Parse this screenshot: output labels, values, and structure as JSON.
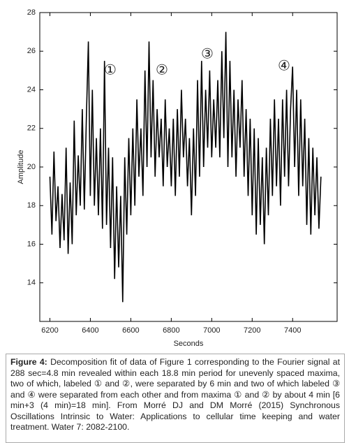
{
  "chart_data": {
    "type": "line",
    "xlabel": "Seconds",
    "ylabel": "Amplitude",
    "annotations": [
      "①",
      "②",
      "③",
      "④"
    ],
    "color": "#000000",
    "xlim": [
      6150,
      7620
    ],
    "xticks": [
      6200,
      6400,
      6600,
      6800,
      7000,
      7200,
      7400
    ],
    "ylim": [
      12,
      28
    ],
    "yticks": [
      14,
      16,
      18,
      20,
      22,
      24,
      26,
      28
    ],
    "x": [
      6200,
      6210,
      6220,
      6230,
      6240,
      6250,
      6260,
      6270,
      6280,
      6290,
      6300,
      6310,
      6320,
      6330,
      6340,
      6350,
      6360,
      6370,
      6380,
      6390,
      6400,
      6410,
      6420,
      6430,
      6440,
      6450,
      6460,
      6470,
      6480,
      6490,
      6500,
      6510,
      6520,
      6530,
      6540,
      6550,
      6560,
      6570,
      6580,
      6590,
      6600,
      6610,
      6620,
      6630,
      6640,
      6650,
      6660,
      6670,
      6680,
      6690,
      6700,
      6710,
      6720,
      6730,
      6740,
      6750,
      6760,
      6770,
      6780,
      6790,
      6800,
      6810,
      6820,
      6830,
      6840,
      6850,
      6860,
      6870,
      6880,
      6890,
      6900,
      6910,
      6920,
      6930,
      6940,
      6950,
      6960,
      6970,
      6980,
      6990,
      7000,
      7010,
      7020,
      7030,
      7040,
      7050,
      7060,
      7070,
      7080,
      7090,
      7100,
      7110,
      7120,
      7130,
      7140,
      7150,
      7160,
      7170,
      7180,
      7190,
      7200,
      7210,
      7220,
      7230,
      7240,
      7250,
      7260,
      7270,
      7280,
      7290,
      7300,
      7310,
      7320,
      7330,
      7340,
      7350,
      7360,
      7370,
      7380,
      7390,
      7400,
      7410,
      7420,
      7430,
      7440,
      7450,
      7460,
      7470,
      7480,
      7490,
      7500,
      7510,
      7520,
      7530,
      7540
    ],
    "values": [
      19.5,
      16.5,
      20.8,
      17.2,
      19.0,
      15.8,
      18.6,
      16.2,
      21.0,
      15.5,
      19.2,
      16.0,
      22.4,
      17.5,
      20.6,
      18.0,
      23.0,
      17.8,
      22.5,
      26.5,
      18.5,
      24.0,
      18.0,
      21.5,
      17.5,
      22.0,
      16.8,
      25.5,
      17.0,
      21.0,
      15.8,
      20.5,
      14.2,
      19.0,
      14.8,
      18.5,
      13.0,
      20.5,
      16.5,
      21.5,
      17.5,
      22.0,
      18.0,
      23.5,
      19.5,
      22.0,
      18.5,
      25.0,
      20.0,
      26.5,
      20.5,
      24.5,
      19.5,
      23.0,
      20.5,
      22.5,
      19.0,
      23.5,
      20.0,
      22.0,
      19.0,
      22.5,
      18.5,
      23.0,
      19.5,
      24.0,
      20.5,
      22.5,
      19.0,
      21.5,
      17.5,
      22.0,
      18.5,
      24.5,
      19.5,
      25.5,
      20.0,
      24.0,
      21.0,
      25.0,
      20.5,
      23.5,
      21.0,
      24.5,
      20.5,
      26.0,
      21.5,
      27.0,
      20.0,
      25.5,
      20.5,
      24.0,
      19.5,
      23.5,
      21.0,
      24.5,
      19.5,
      23.0,
      18.5,
      22.5,
      17.5,
      22.0,
      16.5,
      21.5,
      17.0,
      20.5,
      16.0,
      21.0,
      17.5,
      22.5,
      18.5,
      23.5,
      19.0,
      22.5,
      18.0,
      23.5,
      19.5,
      24.0,
      19.0,
      23.0,
      25.2,
      20.0,
      24.0,
      18.5,
      23.5,
      19.0,
      22.5,
      17.0,
      21.5,
      16.5,
      21.0,
      17.5,
      20.5,
      16.8,
      19.5
    ]
  },
  "caption": {
    "label": "Figure 4:",
    "text": "Decomposition fit of data of Figure 1 corresponding to the Fourier signal at 288 sec=4.8 min revealed within each 18.8 min period for unevenly spaced maxima, two of which, labeled ① and ②, were separated by 6 min and two of which labeled ③ and ④ were separated from each other and from maxima ① and ② by about 4 min [6 min+3 (4 min)=18 min]. From Morré DJ and DM Morré (2015) Synchronous Oscillations Intrinsic to Water: Applications to cellular time keeping and water treatment. Water 7: 2082-2100."
  }
}
